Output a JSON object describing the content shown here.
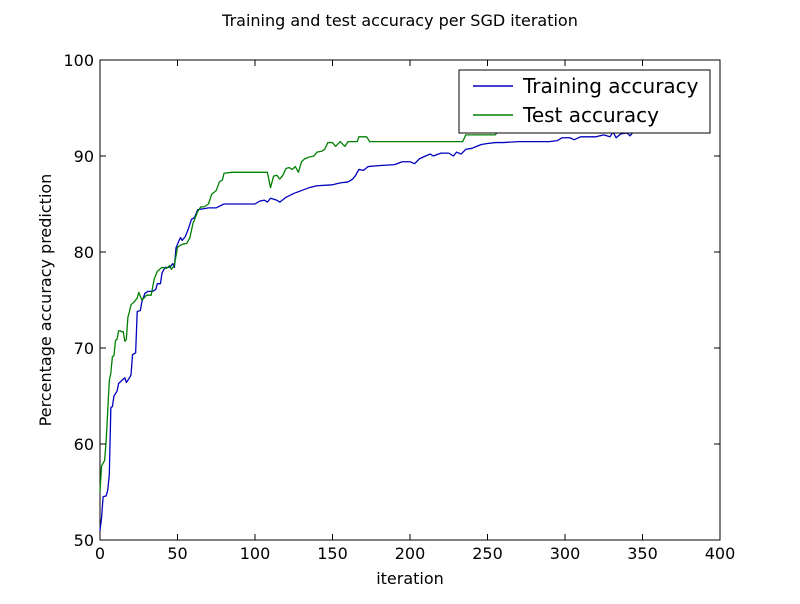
{
  "chart_data": {
    "type": "line",
    "title": "Training and test accuracy per SGD iteration",
    "xlabel": "iteration",
    "ylabel": "Percentage accuracy prediction",
    "xlim": [
      0,
      400
    ],
    "ylim": [
      50,
      100
    ],
    "xticks": [
      0,
      50,
      100,
      150,
      200,
      250,
      300,
      350,
      400
    ],
    "yticks": [
      50,
      60,
      70,
      80,
      90,
      100
    ],
    "grid": false,
    "legend_position": "top-right",
    "series": [
      {
        "name": "Training accuracy",
        "color": "#0000bf",
        "points": [
          [
            0,
            51.0
          ],
          [
            1,
            52.3
          ],
          [
            2,
            54.5
          ],
          [
            4,
            54.6
          ],
          [
            5,
            55.2
          ],
          [
            6,
            56.8
          ],
          [
            7,
            63.8
          ],
          [
            8,
            63.9
          ],
          [
            9,
            65.0
          ],
          [
            11,
            65.5
          ],
          [
            12,
            66.3
          ],
          [
            14,
            66.6
          ],
          [
            16,
            66.9
          ],
          [
            17,
            66.4
          ],
          [
            19,
            66.9
          ],
          [
            20,
            67.2
          ],
          [
            21,
            69.3
          ],
          [
            23,
            69.5
          ],
          [
            24,
            73.8
          ],
          [
            26,
            73.9
          ],
          [
            27,
            74.8
          ],
          [
            29,
            75.7
          ],
          [
            31,
            75.9
          ],
          [
            34,
            75.9
          ],
          [
            36,
            76.1
          ],
          [
            37,
            76.7
          ],
          [
            39,
            76.7
          ],
          [
            40,
            77.8
          ],
          [
            42,
            78.4
          ],
          [
            45,
            78.4
          ],
          [
            47,
            78.8
          ],
          [
            48,
            78.4
          ],
          [
            49,
            80.4
          ],
          [
            51,
            81.2
          ],
          [
            52,
            81.5
          ],
          [
            53,
            81.2
          ],
          [
            55,
            81.6
          ],
          [
            57,
            82.4
          ],
          [
            59,
            83.4
          ],
          [
            61,
            83.6
          ],
          [
            63,
            84.4
          ],
          [
            70,
            84.6
          ],
          [
            75,
            84.6
          ],
          [
            80,
            85.0
          ],
          [
            90,
            85.0
          ],
          [
            100,
            85.0
          ],
          [
            103,
            85.3
          ],
          [
            106,
            85.4
          ],
          [
            108,
            85.2
          ],
          [
            110,
            85.6
          ],
          [
            114,
            85.4
          ],
          [
            116,
            85.2
          ],
          [
            120,
            85.7
          ],
          [
            125,
            86.1
          ],
          [
            130,
            86.4
          ],
          [
            135,
            86.7
          ],
          [
            140,
            86.9
          ],
          [
            150,
            87.0
          ],
          [
            155,
            87.2
          ],
          [
            160,
            87.3
          ],
          [
            163,
            87.6
          ],
          [
            165,
            88.0
          ],
          [
            167,
            88.6
          ],
          [
            170,
            88.5
          ],
          [
            173,
            88.9
          ],
          [
            180,
            89.0
          ],
          [
            190,
            89.1
          ],
          [
            195,
            89.4
          ],
          [
            200,
            89.4
          ],
          [
            203,
            89.2
          ],
          [
            206,
            89.7
          ],
          [
            210,
            90.0
          ],
          [
            213,
            90.2
          ],
          [
            215,
            90.0
          ],
          [
            220,
            90.3
          ],
          [
            225,
            90.3
          ],
          [
            228,
            90.0
          ],
          [
            230,
            90.4
          ],
          [
            233,
            90.2
          ],
          [
            236,
            90.7
          ],
          [
            240,
            90.8
          ],
          [
            243,
            91.0
          ],
          [
            246,
            91.2
          ],
          [
            250,
            91.3
          ],
          [
            255,
            91.4
          ],
          [
            260,
            91.4
          ],
          [
            270,
            91.5
          ],
          [
            280,
            91.5
          ],
          [
            290,
            91.5
          ],
          [
            295,
            91.6
          ],
          [
            298,
            91.9
          ],
          [
            303,
            91.9
          ],
          [
            306,
            91.7
          ],
          [
            310,
            92.0
          ],
          [
            315,
            92.0
          ],
          [
            320,
            92.0
          ],
          [
            325,
            92.2
          ],
          [
            329,
            92.0
          ],
          [
            331,
            92.5
          ],
          [
            333,
            91.9
          ],
          [
            336,
            92.3
          ],
          [
            340,
            92.4
          ],
          [
            342,
            92.1
          ],
          [
            344,
            92.5
          ]
        ]
      },
      {
        "name": "Test accuracy",
        "color": "#008000",
        "points": [
          [
            0,
            55.0
          ],
          [
            1,
            57.7
          ],
          [
            3,
            58.3
          ],
          [
            4,
            60.4
          ],
          [
            6,
            66.6
          ],
          [
            7,
            67.4
          ],
          [
            8,
            69.1
          ],
          [
            9,
            69.2
          ],
          [
            10,
            70.8
          ],
          [
            11,
            70.9
          ],
          [
            12,
            71.8
          ],
          [
            13,
            71.8
          ],
          [
            14,
            71.7
          ],
          [
            15,
            71.7
          ],
          [
            16,
            70.7
          ],
          [
            17,
            70.9
          ],
          [
            18,
            73.2
          ],
          [
            19,
            73.8
          ],
          [
            20,
            74.5
          ],
          [
            22,
            74.8
          ],
          [
            24,
            75.2
          ],
          [
            25,
            75.8
          ],
          [
            27,
            75.0
          ],
          [
            29,
            75.3
          ],
          [
            30,
            75.5
          ],
          [
            33,
            75.5
          ],
          [
            35,
            77.2
          ],
          [
            37,
            78.0
          ],
          [
            40,
            78.4
          ],
          [
            43,
            78.3
          ],
          [
            45,
            78.6
          ],
          [
            46,
            78.2
          ],
          [
            48,
            78.6
          ],
          [
            50,
            80.5
          ],
          [
            53,
            80.8
          ],
          [
            56,
            80.9
          ],
          [
            58,
            81.5
          ],
          [
            60,
            83.0
          ],
          [
            63,
            84.2
          ],
          [
            65,
            84.7
          ],
          [
            67,
            84.7
          ],
          [
            70,
            85.0
          ],
          [
            72,
            86.0
          ],
          [
            75,
            86.4
          ],
          [
            77,
            87.3
          ],
          [
            79,
            87.5
          ],
          [
            80,
            88.2
          ],
          [
            85,
            88.3
          ],
          [
            95,
            88.3
          ],
          [
            105,
            88.3
          ],
          [
            108,
            88.3
          ],
          [
            110,
            86.7
          ],
          [
            112,
            87.9
          ],
          [
            114,
            88.0
          ],
          [
            116,
            87.6
          ],
          [
            118,
            88.0
          ],
          [
            120,
            88.7
          ],
          [
            122,
            88.8
          ],
          [
            124,
            88.6
          ],
          [
            126,
            88.9
          ],
          [
            128,
            88.3
          ],
          [
            130,
            89.4
          ],
          [
            132,
            89.7
          ],
          [
            135,
            89.9
          ],
          [
            138,
            90.0
          ],
          [
            140,
            90.4
          ],
          [
            143,
            90.5
          ],
          [
            145,
            90.7
          ],
          [
            147,
            91.4
          ],
          [
            150,
            91.4
          ],
          [
            152,
            91.0
          ],
          [
            155,
            91.5
          ],
          [
            158,
            91.0
          ],
          [
            160,
            91.5
          ],
          [
            163,
            91.5
          ],
          [
            166,
            91.5
          ],
          [
            167,
            92.0
          ],
          [
            172,
            92.0
          ],
          [
            174,
            91.5
          ],
          [
            180,
            91.5
          ],
          [
            200,
            91.5
          ],
          [
            230,
            91.5
          ],
          [
            234,
            91.5
          ],
          [
            236,
            92.2
          ],
          [
            240,
            92.2
          ],
          [
            255,
            92.2
          ],
          [
            257,
            92.6
          ],
          [
            260,
            92.6
          ]
        ]
      }
    ]
  }
}
